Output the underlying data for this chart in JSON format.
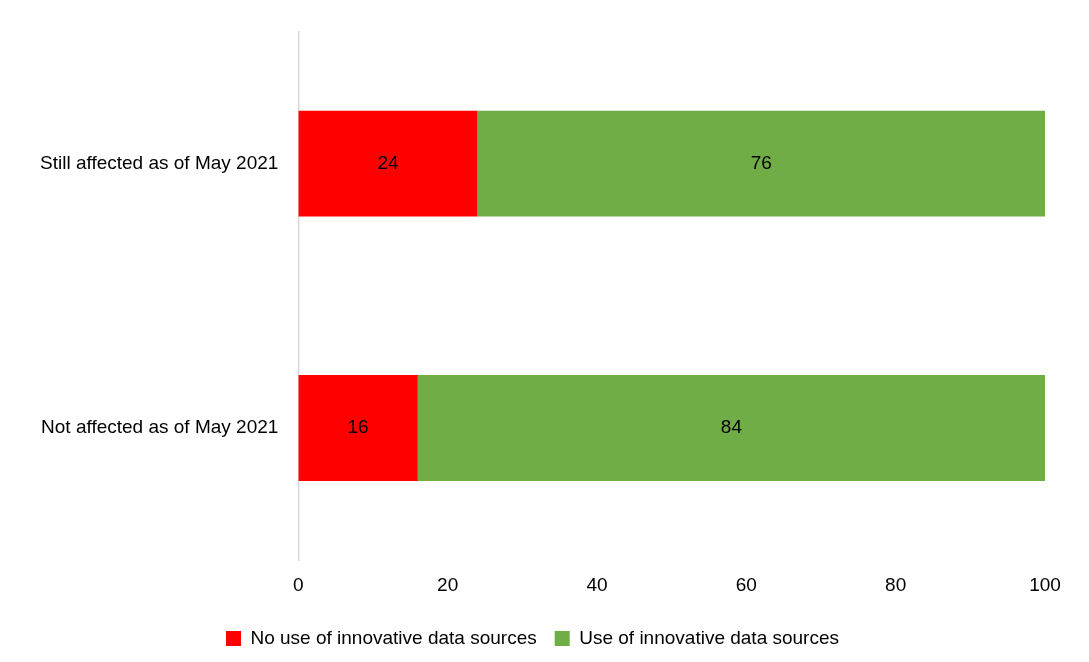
{
  "chart_data": {
    "type": "bar",
    "orientation": "horizontal",
    "stacked": true,
    "categories": [
      "Still affected as of May 2021",
      "Not affected as of May 2021"
    ],
    "series": [
      {
        "name": "No use of innovative data sources",
        "color": "#ff0000",
        "values": [
          24,
          16
        ]
      },
      {
        "name": "Use of innovative data sources",
        "color": "#70ad47",
        "values": [
          76,
          84
        ]
      }
    ],
    "xlim": [
      0,
      100
    ],
    "xticks": [
      0,
      20,
      40,
      60,
      80,
      100
    ],
    "legend": "bottom",
    "data_labels": true
  }
}
